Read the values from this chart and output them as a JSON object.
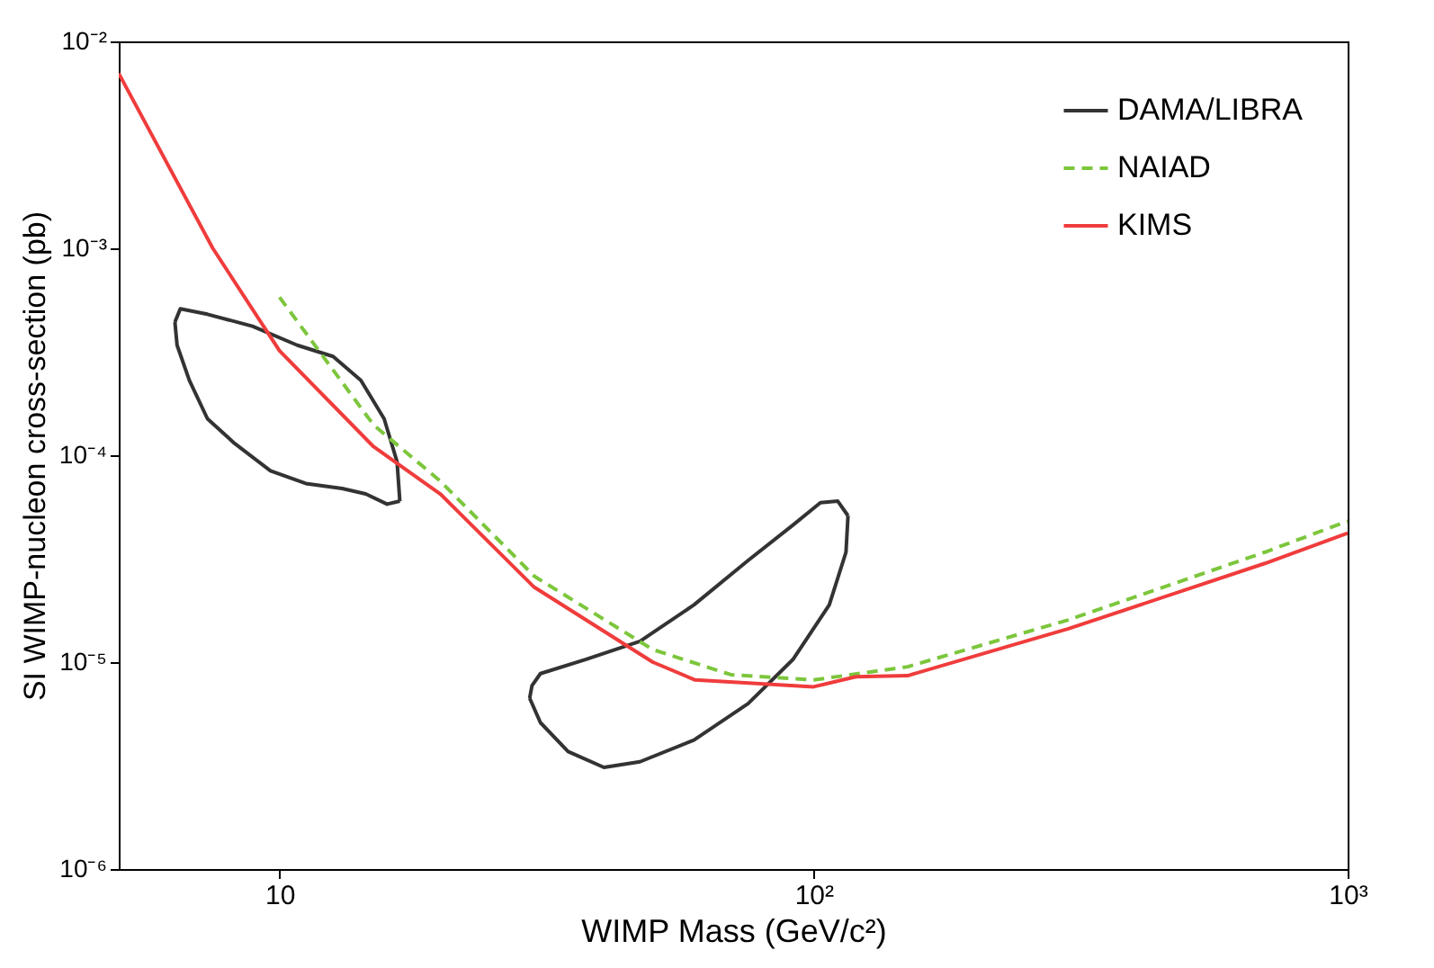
{
  "chart_data": {
    "type": "line",
    "xlabel": "WIMP Mass (GeV/c²)",
    "ylabel": "SI WIMP-nucleon cross-section (pb)",
    "log": "xy",
    "grid": false,
    "legend": "top right",
    "xlim": [
      5,
      1000
    ],
    "ylim": [
      1e-06,
      0.01
    ],
    "xticks": [
      10,
      {
        "value": 100,
        "label": "10²"
      },
      {
        "value": 1000,
        "label": "10³"
      }
    ],
    "yticks": [
      {
        "value": 1e-06,
        "label": "10⁻⁶"
      },
      {
        "value": 1e-05,
        "label": "10⁻⁵"
      },
      {
        "value": 0.0001,
        "label": "10⁻⁴"
      },
      {
        "value": 0.001,
        "label": "10⁻³"
      },
      {
        "value": 0.01,
        "label": "10⁻²"
      }
    ],
    "series": [
      {
        "name": "DAMA/LIBRA",
        "color": "#333333",
        "line_style": "solid",
        "x": [
          6.37,
          6.52,
          7.33,
          8.9,
          10.8,
          12.6,
          14.2,
          15.7,
          16.6,
          16.8
        ],
        "values": [
          0.00044,
          0.00051,
          0.00048,
          0.00042,
          0.00034,
          0.0003,
          0.00023,
          0.00015,
          9.3e-05,
          6e-05
        ]
      },
      {
        "color": "#333333",
        "line_style": "solid",
        "x": [
          6.37,
          6.43,
          6.78,
          7.33,
          8.24,
          9.62,
          11.2,
          13.1,
          14.5,
          15.9,
          16.8
        ],
        "values": [
          0.00044,
          0.00034,
          0.00023,
          0.00015,
          0.000114,
          8.4e-05,
          7.3e-05,
          6.9e-05,
          6.5e-05,
          5.8e-05,
          6e-05
        ]
      },
      {
        "color": "#333333",
        "line_style": "solid",
        "x": [
          29.4,
          29.7,
          30.8,
          37.4,
          47.3,
          59.7,
          75.4,
          91.5,
          103,
          111,
          116
        ],
        "values": [
          6.7e-06,
          7.7e-06,
          8.8e-06,
          1.03e-05,
          1.26e-05,
          1.89e-05,
          3.1e-05,
          4.6e-05,
          5.9e-05,
          6e-05,
          5.1e-05
        ]
      },
      {
        "color": "#333333",
        "line_style": "solid",
        "x": [
          29.4,
          30.8,
          34.7,
          40.5,
          47.3,
          59.7,
          75.4,
          91.5,
          107,
          115,
          116
        ],
        "values": [
          6.7e-06,
          5.1e-06,
          3.7e-06,
          3.1e-06,
          3.3e-06,
          4.2e-06,
          6.3e-06,
          1.03e-05,
          1.89e-05,
          3.4e-05,
          5.1e-05
        ]
      },
      {
        "name": "NAIAD",
        "color": "#7cc63c",
        "line_style": "dashed",
        "x": [
          10,
          15,
          20,
          30,
          50,
          70,
          100,
          150,
          300,
          700,
          1000
        ],
        "values": [
          0.00058,
          0.00014,
          7.5e-05,
          2.6e-05,
          1.15e-05,
          8.7e-06,
          8.2e-06,
          9.5e-06,
          1.6e-05,
          3.4e-05,
          4.8e-05
        ]
      },
      {
        "name": "KIMS",
        "color": "#f03c3c",
        "line_style": "solid",
        "x": [
          5,
          7.5,
          10,
          15,
          20,
          30,
          50,
          60,
          100,
          120,
          150,
          300,
          700,
          1000
        ],
        "values": [
          0.007,
          0.001,
          0.00032,
          0.00011,
          6.5e-05,
          2.3e-05,
          1e-05,
          8.2e-06,
          7.6e-06,
          8.5e-06,
          8.6e-06,
          1.45e-05,
          3e-05,
          4.2e-05
        ]
      }
    ]
  }
}
